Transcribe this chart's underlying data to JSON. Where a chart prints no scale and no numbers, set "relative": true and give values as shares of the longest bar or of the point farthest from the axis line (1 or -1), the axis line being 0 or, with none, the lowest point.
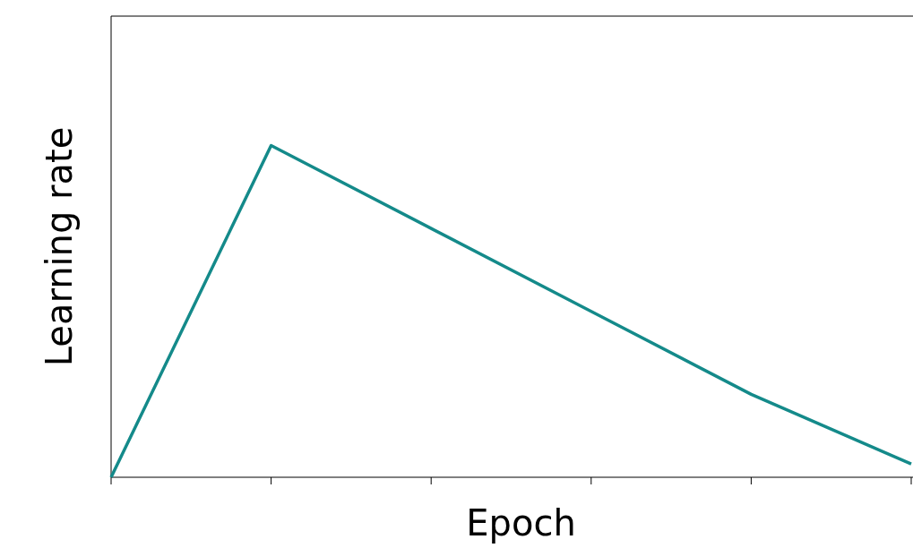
{
  "chart_data": {
    "type": "line",
    "relative": true,
    "xlabel": "Epoch",
    "ylabel": "Learning rate",
    "categories": [
      null,
      null,
      null,
      null,
      null,
      null
    ],
    "series": [
      {
        "color": "#148a8a",
        "values": [
          0,
          1,
          0.75,
          0.5,
          0.25,
          0.04
        ]
      }
    ],
    "marker": "none",
    "line_style": "solid",
    "grid": false
  }
}
